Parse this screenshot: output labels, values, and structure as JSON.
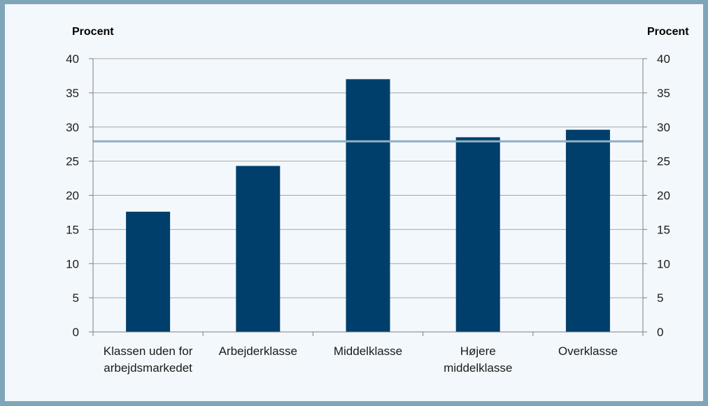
{
  "chart_data": {
    "type": "bar",
    "left_axis_title": "Procent",
    "right_axis_title": "Procent",
    "categories": [
      [
        "Klassen uden for",
        "arbejdsmarkedet"
      ],
      [
        "Arbejderklasse"
      ],
      [
        "Middelklasse"
      ],
      [
        "Højere",
        "middelklasse"
      ],
      [
        "Overklasse"
      ]
    ],
    "values": [
      17.6,
      24.3,
      37.0,
      28.5,
      29.6
    ],
    "reference_line": 27.9,
    "ylim": [
      0,
      40
    ],
    "yticks": [
      "0",
      "5",
      "10",
      "15",
      "20",
      "25",
      "30",
      "35",
      "40"
    ],
    "grid": true,
    "bar_color": "#003f6b",
    "line_color": "#8fb0c4",
    "grid_color": "#a8a8a8"
  }
}
